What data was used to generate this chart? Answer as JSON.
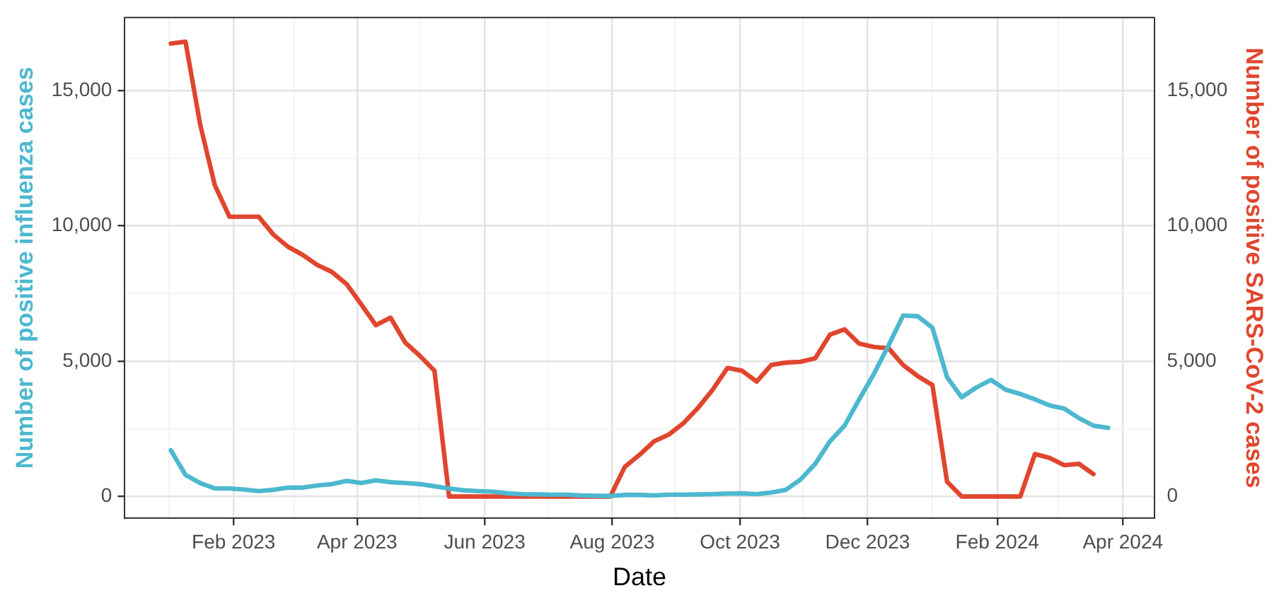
{
  "chart_data": {
    "type": "line",
    "xlabel": "Date",
    "ylabel": "Number of positive influenza cases",
    "y2label": "Number of positive SARS-CoV-2 cases",
    "x": [
      "2023-01-02",
      "2023-01-09",
      "2023-01-16",
      "2023-01-23",
      "2023-01-30",
      "2023-02-06",
      "2023-02-13",
      "2023-02-20",
      "2023-02-27",
      "2023-03-06",
      "2023-03-13",
      "2023-03-20",
      "2023-03-27",
      "2023-04-03",
      "2023-04-10",
      "2023-04-17",
      "2023-04-24",
      "2023-05-01",
      "2023-05-08",
      "2023-05-15",
      "2023-05-22",
      "2023-05-29",
      "2023-06-05",
      "2023-06-12",
      "2023-06-19",
      "2023-06-26",
      "2023-07-03",
      "2023-07-10",
      "2023-07-17",
      "2023-07-24",
      "2023-07-31",
      "2023-08-07",
      "2023-08-14",
      "2023-08-21",
      "2023-08-28",
      "2023-09-04",
      "2023-09-11",
      "2023-09-18",
      "2023-09-25",
      "2023-10-02",
      "2023-10-09",
      "2023-10-16",
      "2023-10-23",
      "2023-10-30",
      "2023-11-06",
      "2023-11-13",
      "2023-11-20",
      "2023-11-27",
      "2023-12-04",
      "2023-12-11",
      "2023-12-18",
      "2023-12-25",
      "2024-01-01",
      "2024-01-08",
      "2024-01-15",
      "2024-01-22",
      "2024-01-29",
      "2024-02-05",
      "2024-02-12",
      "2024-02-19",
      "2024-02-26",
      "2024-03-04",
      "2024-03-11",
      "2024-03-18",
      "2024-03-25"
    ],
    "series": [
      {
        "color": "#4db8d0",
        "axis": "y",
        "values": [
          1710,
          800,
          500,
          300,
          300,
          260,
          200,
          250,
          330,
          330,
          410,
          460,
          580,
          500,
          600,
          530,
          500,
          460,
          380,
          300,
          230,
          200,
          180,
          120,
          90,
          80,
          70,
          70,
          40,
          30,
          20,
          60,
          60,
          40,
          70,
          70,
          80,
          90,
          110,
          120,
          90,
          150,
          250,
          630,
          1210,
          2040,
          2620,
          3590,
          4530,
          5580,
          6690,
          6660,
          6240,
          4410,
          3670,
          4030,
          4310,
          3950,
          3790,
          3590,
          3370,
          3250,
          2900,
          2620,
          2540
        ]
      },
      {
        "color": "#e0462e",
        "axis": "y2",
        "values": [
          16740,
          16810,
          13750,
          11510,
          10340,
          10340,
          10340,
          9680,
          9230,
          8930,
          8560,
          8300,
          7850,
          7100,
          6330,
          6610,
          5690,
          5200,
          4650,
          0,
          0,
          0,
          0,
          0,
          0,
          0,
          0,
          0,
          0,
          0,
          0,
          1100,
          1540,
          2040,
          2290,
          2710,
          3280,
          3950,
          4750,
          4650,
          4250,
          4860,
          4950,
          4980,
          5110,
          5980,
          6180,
          5650,
          5530,
          5480,
          4860,
          4450,
          4120,
          550,
          0,
          0,
          0,
          0,
          0,
          1570,
          1430,
          1160,
          1210,
          830,
          null
        ]
      }
    ],
    "xlim": [
      "2022-12-11",
      "2024-04-16"
    ],
    "xticks": [
      {
        "value": "2023-01-01",
        "label": null
      },
      {
        "value": "2023-02-01",
        "label": "Feb 2023"
      },
      {
        "value": "2023-03-02",
        "label": null
      },
      {
        "value": "2023-04-01",
        "label": "Apr 2023"
      },
      {
        "value": "2023-05-01",
        "label": null
      },
      {
        "value": "2023-06-01",
        "label": "Jun 2023"
      },
      {
        "value": "2023-07-01",
        "label": null
      },
      {
        "value": "2023-08-01",
        "label": "Aug 2023"
      },
      {
        "value": "2023-08-31",
        "label": null
      },
      {
        "value": "2023-10-01",
        "label": "Oct 2023"
      },
      {
        "value": "2023-10-31",
        "label": null
      },
      {
        "value": "2023-12-01",
        "label": "Dec 2023"
      },
      {
        "value": "2024-01-01",
        "label": null
      },
      {
        "value": "2024-02-01",
        "label": "Feb 2024"
      },
      {
        "value": "2024-03-01",
        "label": null
      },
      {
        "value": "2024-04-01",
        "label": "Apr 2024"
      }
    ],
    "ylim": [
      -800,
      17700
    ],
    "yticks": [
      0,
      {
        "value": 2500,
        "label": null
      },
      {
        "value": 5000,
        "label": "5,000"
      },
      {
        "value": 7500,
        "label": null
      },
      {
        "value": 10000,
        "label": "10,000"
      },
      {
        "value": 12500,
        "label": null
      },
      {
        "value": 15000,
        "label": "15,000"
      }
    ],
    "y2lim": [
      -800,
      17700
    ],
    "y2ticks": [
      0,
      {
        "value": 5000,
        "label": "5,000"
      },
      {
        "value": 10000,
        "label": "10,000"
      },
      {
        "value": 15000,
        "label": "15,000"
      }
    ],
    "grid": true,
    "legend": false,
    "marker": "none",
    "line_style": "solid"
  }
}
